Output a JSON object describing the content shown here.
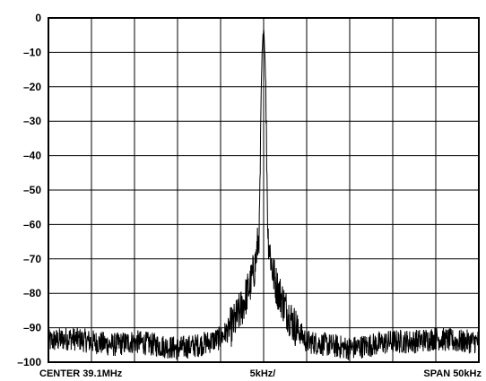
{
  "chart_data": {
    "type": "line",
    "title": "",
    "xlabel": "",
    "ylabel": "",
    "footer": {
      "center": "CENTER 39.1MHz",
      "scale": "5kHz/",
      "span": "SPAN 50kHz"
    },
    "x_center_mhz": 39.1,
    "x_span_khz": 50,
    "x_div_khz": 5,
    "xlim_khz": [
      -25,
      25
    ],
    "ylim": [
      -100,
      0
    ],
    "ytick_labels": [
      "0",
      "–10",
      "–20",
      "–30",
      "–40",
      "–50",
      "–60",
      "–70",
      "–80",
      "–90",
      "–100"
    ],
    "grid": true,
    "series": [
      {
        "x_khz": [
          -25,
          -22.5,
          -20,
          -17.5,
          -15,
          -12.5,
          -10,
          -7.5,
          -5,
          -3.5,
          -2.5,
          -1.5,
          -1.0,
          -0.5,
          -0.2,
          0,
          0.2,
          0.5,
          1.0,
          1.5,
          2.5,
          3.5,
          5,
          7.5,
          10,
          12.5,
          15,
          17.5,
          20,
          22.5,
          25
        ],
        "values": [
          -94,
          -93,
          -94,
          -95,
          -94,
          -95,
          -96,
          -95,
          -93,
          -89,
          -84,
          -77,
          -72,
          -62,
          -12,
          -2,
          -14,
          -63,
          -73,
          -78,
          -84,
          -89,
          -94,
          -95,
          -96,
          -95,
          -94,
          -94,
          -93,
          -94,
          -94
        ]
      }
    ]
  }
}
